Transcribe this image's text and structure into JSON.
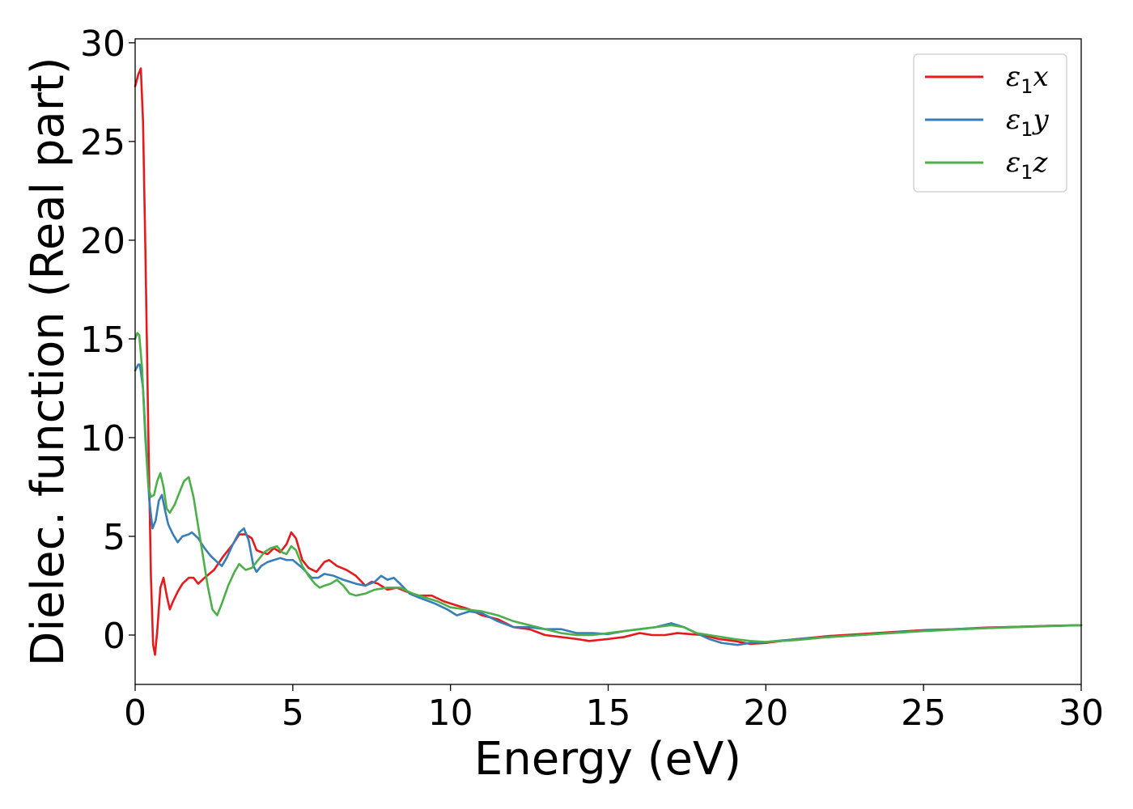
{
  "chart_data": {
    "type": "line",
    "xlabel": "Energy (eV)",
    "ylabel": "Dielec. function (Real part)",
    "xlim": [
      0,
      30
    ],
    "ylim": [
      -2.5,
      30.2
    ],
    "xticks": [
      0,
      5,
      10,
      15,
      20,
      25,
      30
    ],
    "yticks": [
      0,
      5,
      10,
      15,
      20,
      25,
      30
    ],
    "grid": false,
    "legend_position": "top-right",
    "series": [
      {
        "name": "ε₁x",
        "legend": {
          "base": "ε",
          "sub": "1",
          "var": "x"
        },
        "color": "#e41a1c",
        "points": [
          [
            0,
            27.8
          ],
          [
            0.1,
            28.4
          ],
          [
            0.18,
            28.7
          ],
          [
            0.25,
            26
          ],
          [
            0.33,
            19
          ],
          [
            0.42,
            10
          ],
          [
            0.5,
            3
          ],
          [
            0.57,
            -0.5
          ],
          [
            0.63,
            -1
          ],
          [
            0.7,
            0.2
          ],
          [
            0.8,
            2.4
          ],
          [
            0.9,
            2.9
          ],
          [
            1.0,
            2
          ],
          [
            1.1,
            1.3
          ],
          [
            1.2,
            1.7
          ],
          [
            1.35,
            2.2
          ],
          [
            1.5,
            2.6
          ],
          [
            1.7,
            2.9
          ],
          [
            1.85,
            2.9
          ],
          [
            2.0,
            2.6
          ],
          [
            2.2,
            2.9
          ],
          [
            2.5,
            3.3
          ],
          [
            2.8,
            4
          ],
          [
            3.1,
            4.6
          ],
          [
            3.3,
            5.1
          ],
          [
            3.5,
            5.1
          ],
          [
            3.7,
            4.9
          ],
          [
            3.85,
            4.3
          ],
          [
            4.0,
            4.2
          ],
          [
            4.2,
            4.1
          ],
          [
            4.4,
            4.4
          ],
          [
            4.6,
            4.2
          ],
          [
            4.8,
            4.6
          ],
          [
            4.95,
            5.2
          ],
          [
            5.1,
            4.9
          ],
          [
            5.3,
            3.8
          ],
          [
            5.5,
            3.4
          ],
          [
            5.75,
            3.2
          ],
          [
            6.0,
            3.7
          ],
          [
            6.15,
            3.8
          ],
          [
            6.4,
            3.5
          ],
          [
            6.7,
            3.3
          ],
          [
            7.0,
            3
          ],
          [
            7.3,
            2.5
          ],
          [
            7.5,
            2.7
          ],
          [
            7.7,
            2.6
          ],
          [
            8.0,
            2.3
          ],
          [
            8.3,
            2.4
          ],
          [
            8.6,
            2.2
          ],
          [
            9.0,
            2
          ],
          [
            9.4,
            2
          ],
          [
            9.8,
            1.7
          ],
          [
            10.2,
            1.5
          ],
          [
            10.6,
            1.3
          ],
          [
            11.0,
            1
          ],
          [
            11.5,
            0.8
          ],
          [
            12.0,
            0.4
          ],
          [
            12.5,
            0.3
          ],
          [
            13.0,
            0
          ],
          [
            13.5,
            -0.1
          ],
          [
            14.0,
            -0.2
          ],
          [
            14.4,
            -0.3
          ],
          [
            15.0,
            -0.2
          ],
          [
            15.5,
            -0.1
          ],
          [
            16.0,
            0.1
          ],
          [
            16.4,
            0
          ],
          [
            16.8,
            0
          ],
          [
            17.2,
            0.1
          ],
          [
            17.6,
            0.05
          ],
          [
            18.0,
            0
          ],
          [
            18.5,
            -0.2
          ],
          [
            19.0,
            -0.3
          ],
          [
            19.5,
            -0.45
          ],
          [
            20.0,
            -0.4
          ],
          [
            21.0,
            -0.2
          ],
          [
            22.0,
            -0.05
          ],
          [
            23.0,
            0.05
          ],
          [
            24.0,
            0.15
          ],
          [
            25.0,
            0.25
          ],
          [
            26.0,
            0.3
          ],
          [
            27.0,
            0.38
          ],
          [
            28.0,
            0.42
          ],
          [
            29.0,
            0.47
          ],
          [
            30.0,
            0.5
          ]
        ]
      },
      {
        "name": "ε₁y",
        "legend": {
          "base": "ε",
          "sub": "1",
          "var": "y"
        },
        "color": "#377eb8",
        "points": [
          [
            0,
            13.4
          ],
          [
            0.1,
            13.7
          ],
          [
            0.15,
            13.7
          ],
          [
            0.25,
            12.5
          ],
          [
            0.35,
            9.5
          ],
          [
            0.45,
            6.8
          ],
          [
            0.55,
            5.4
          ],
          [
            0.65,
            5.8
          ],
          [
            0.75,
            6.8
          ],
          [
            0.85,
            7.1
          ],
          [
            0.95,
            6.3
          ],
          [
            1.05,
            5.6
          ],
          [
            1.2,
            5.1
          ],
          [
            1.35,
            4.7
          ],
          [
            1.5,
            5
          ],
          [
            1.7,
            5.1
          ],
          [
            1.8,
            5.2
          ],
          [
            2.0,
            4.9
          ],
          [
            2.2,
            4.4
          ],
          [
            2.4,
            4
          ],
          [
            2.6,
            3.7
          ],
          [
            2.75,
            3.5
          ],
          [
            2.9,
            3.9
          ],
          [
            3.1,
            4.6
          ],
          [
            3.3,
            5.2
          ],
          [
            3.45,
            5.4
          ],
          [
            3.6,
            4.8
          ],
          [
            3.75,
            3.5
          ],
          [
            3.85,
            3.2
          ],
          [
            4.0,
            3.5
          ],
          [
            4.2,
            3.7
          ],
          [
            4.4,
            3.8
          ],
          [
            4.6,
            3.9
          ],
          [
            4.8,
            3.8
          ],
          [
            5.0,
            3.8
          ],
          [
            5.3,
            3.4
          ],
          [
            5.6,
            2.9
          ],
          [
            5.8,
            2.9
          ],
          [
            6.0,
            3.1
          ],
          [
            6.3,
            3
          ],
          [
            6.6,
            2.8
          ],
          [
            7.0,
            2.6
          ],
          [
            7.3,
            2.5
          ],
          [
            7.6,
            2.7
          ],
          [
            7.8,
            3
          ],
          [
            8.0,
            2.8
          ],
          [
            8.2,
            2.9
          ],
          [
            8.4,
            2.6
          ],
          [
            8.7,
            2.1
          ],
          [
            9.0,
            1.9
          ],
          [
            9.5,
            1.6
          ],
          [
            9.9,
            1.3
          ],
          [
            10.2,
            1
          ],
          [
            10.6,
            1.2
          ],
          [
            11.0,
            1.1
          ],
          [
            11.5,
            0.7
          ],
          [
            12.0,
            0.4
          ],
          [
            12.5,
            0.4
          ],
          [
            13.0,
            0.3
          ],
          [
            13.5,
            0.3
          ],
          [
            14.0,
            0.1
          ],
          [
            14.5,
            0.1
          ],
          [
            15.0,
            0.05
          ],
          [
            15.5,
            0.2
          ],
          [
            16.0,
            0.3
          ],
          [
            16.5,
            0.4
          ],
          [
            17.0,
            0.6
          ],
          [
            17.4,
            0.4
          ],
          [
            17.8,
            0.1
          ],
          [
            18.2,
            -0.2
          ],
          [
            18.6,
            -0.4
          ],
          [
            19.1,
            -0.5
          ],
          [
            19.5,
            -0.4
          ],
          [
            20.0,
            -0.35
          ],
          [
            21.0,
            -0.2
          ],
          [
            22.0,
            -0.1
          ],
          [
            23.0,
            0
          ],
          [
            24.0,
            0.12
          ],
          [
            25.0,
            0.22
          ],
          [
            26.0,
            0.3
          ],
          [
            27.0,
            0.36
          ],
          [
            28.0,
            0.42
          ],
          [
            29.0,
            0.46
          ],
          [
            30.0,
            0.5
          ]
        ]
      },
      {
        "name": "ε₁z",
        "legend": {
          "base": "ε",
          "sub": "1",
          "var": "z"
        },
        "color": "#4daf4a",
        "points": [
          [
            0,
            15
          ],
          [
            0.07,
            15.3
          ],
          [
            0.13,
            15.2
          ],
          [
            0.22,
            13.5
          ],
          [
            0.32,
            10
          ],
          [
            0.42,
            7.5
          ],
          [
            0.5,
            7
          ],
          [
            0.6,
            7.1
          ],
          [
            0.7,
            7.8
          ],
          [
            0.8,
            8.2
          ],
          [
            0.9,
            7.5
          ],
          [
            1.0,
            6.4
          ],
          [
            1.1,
            6.2
          ],
          [
            1.25,
            6.6
          ],
          [
            1.4,
            7.2
          ],
          [
            1.55,
            7.8
          ],
          [
            1.7,
            8
          ],
          [
            1.85,
            7
          ],
          [
            2.0,
            5.5
          ],
          [
            2.15,
            4
          ],
          [
            2.3,
            2.5
          ],
          [
            2.45,
            1.3
          ],
          [
            2.6,
            1
          ],
          [
            2.75,
            1.6
          ],
          [
            2.95,
            2.5
          ],
          [
            3.15,
            3.2
          ],
          [
            3.3,
            3.6
          ],
          [
            3.5,
            3.3
          ],
          [
            3.7,
            3.4
          ],
          [
            3.9,
            3.8
          ],
          [
            4.1,
            4.2
          ],
          [
            4.3,
            4.4
          ],
          [
            4.5,
            4.5
          ],
          [
            4.65,
            4.2
          ],
          [
            4.8,
            4.1
          ],
          [
            4.95,
            4.5
          ],
          [
            5.1,
            4.3
          ],
          [
            5.3,
            3.5
          ],
          [
            5.5,
            3
          ],
          [
            5.7,
            2.6
          ],
          [
            5.85,
            2.4
          ],
          [
            6.0,
            2.5
          ],
          [
            6.2,
            2.6
          ],
          [
            6.4,
            2.8
          ],
          [
            6.6,
            2.5
          ],
          [
            6.8,
            2.1
          ],
          [
            7.0,
            2
          ],
          [
            7.3,
            2.1
          ],
          [
            7.6,
            2.3
          ],
          [
            8.0,
            2.4
          ],
          [
            8.4,
            2.4
          ],
          [
            8.8,
            2.1
          ],
          [
            9.2,
            1.9
          ],
          [
            9.6,
            1.7
          ],
          [
            10.0,
            1.4
          ],
          [
            10.5,
            1.3
          ],
          [
            11.0,
            1.2
          ],
          [
            11.5,
            1
          ],
          [
            12.0,
            0.7
          ],
          [
            12.5,
            0.5
          ],
          [
            13.0,
            0.3
          ],
          [
            13.5,
            0.1
          ],
          [
            14.0,
            0
          ],
          [
            14.5,
            0
          ],
          [
            15.0,
            0.1
          ],
          [
            15.5,
            0.2
          ],
          [
            16.0,
            0.3
          ],
          [
            16.5,
            0.4
          ],
          [
            17.0,
            0.5
          ],
          [
            17.4,
            0.4
          ],
          [
            17.8,
            0.1
          ],
          [
            18.2,
            0
          ],
          [
            18.6,
            -0.1
          ],
          [
            19.0,
            -0.2
          ],
          [
            19.5,
            -0.3
          ],
          [
            20.0,
            -0.35
          ],
          [
            21.0,
            -0.25
          ],
          [
            22.0,
            -0.1
          ],
          [
            23.0,
            0
          ],
          [
            24.0,
            0.1
          ],
          [
            25.0,
            0.2
          ],
          [
            26.0,
            0.28
          ],
          [
            27.0,
            0.35
          ],
          [
            28.0,
            0.4
          ],
          [
            29.0,
            0.45
          ],
          [
            30.0,
            0.5
          ]
        ]
      }
    ]
  }
}
